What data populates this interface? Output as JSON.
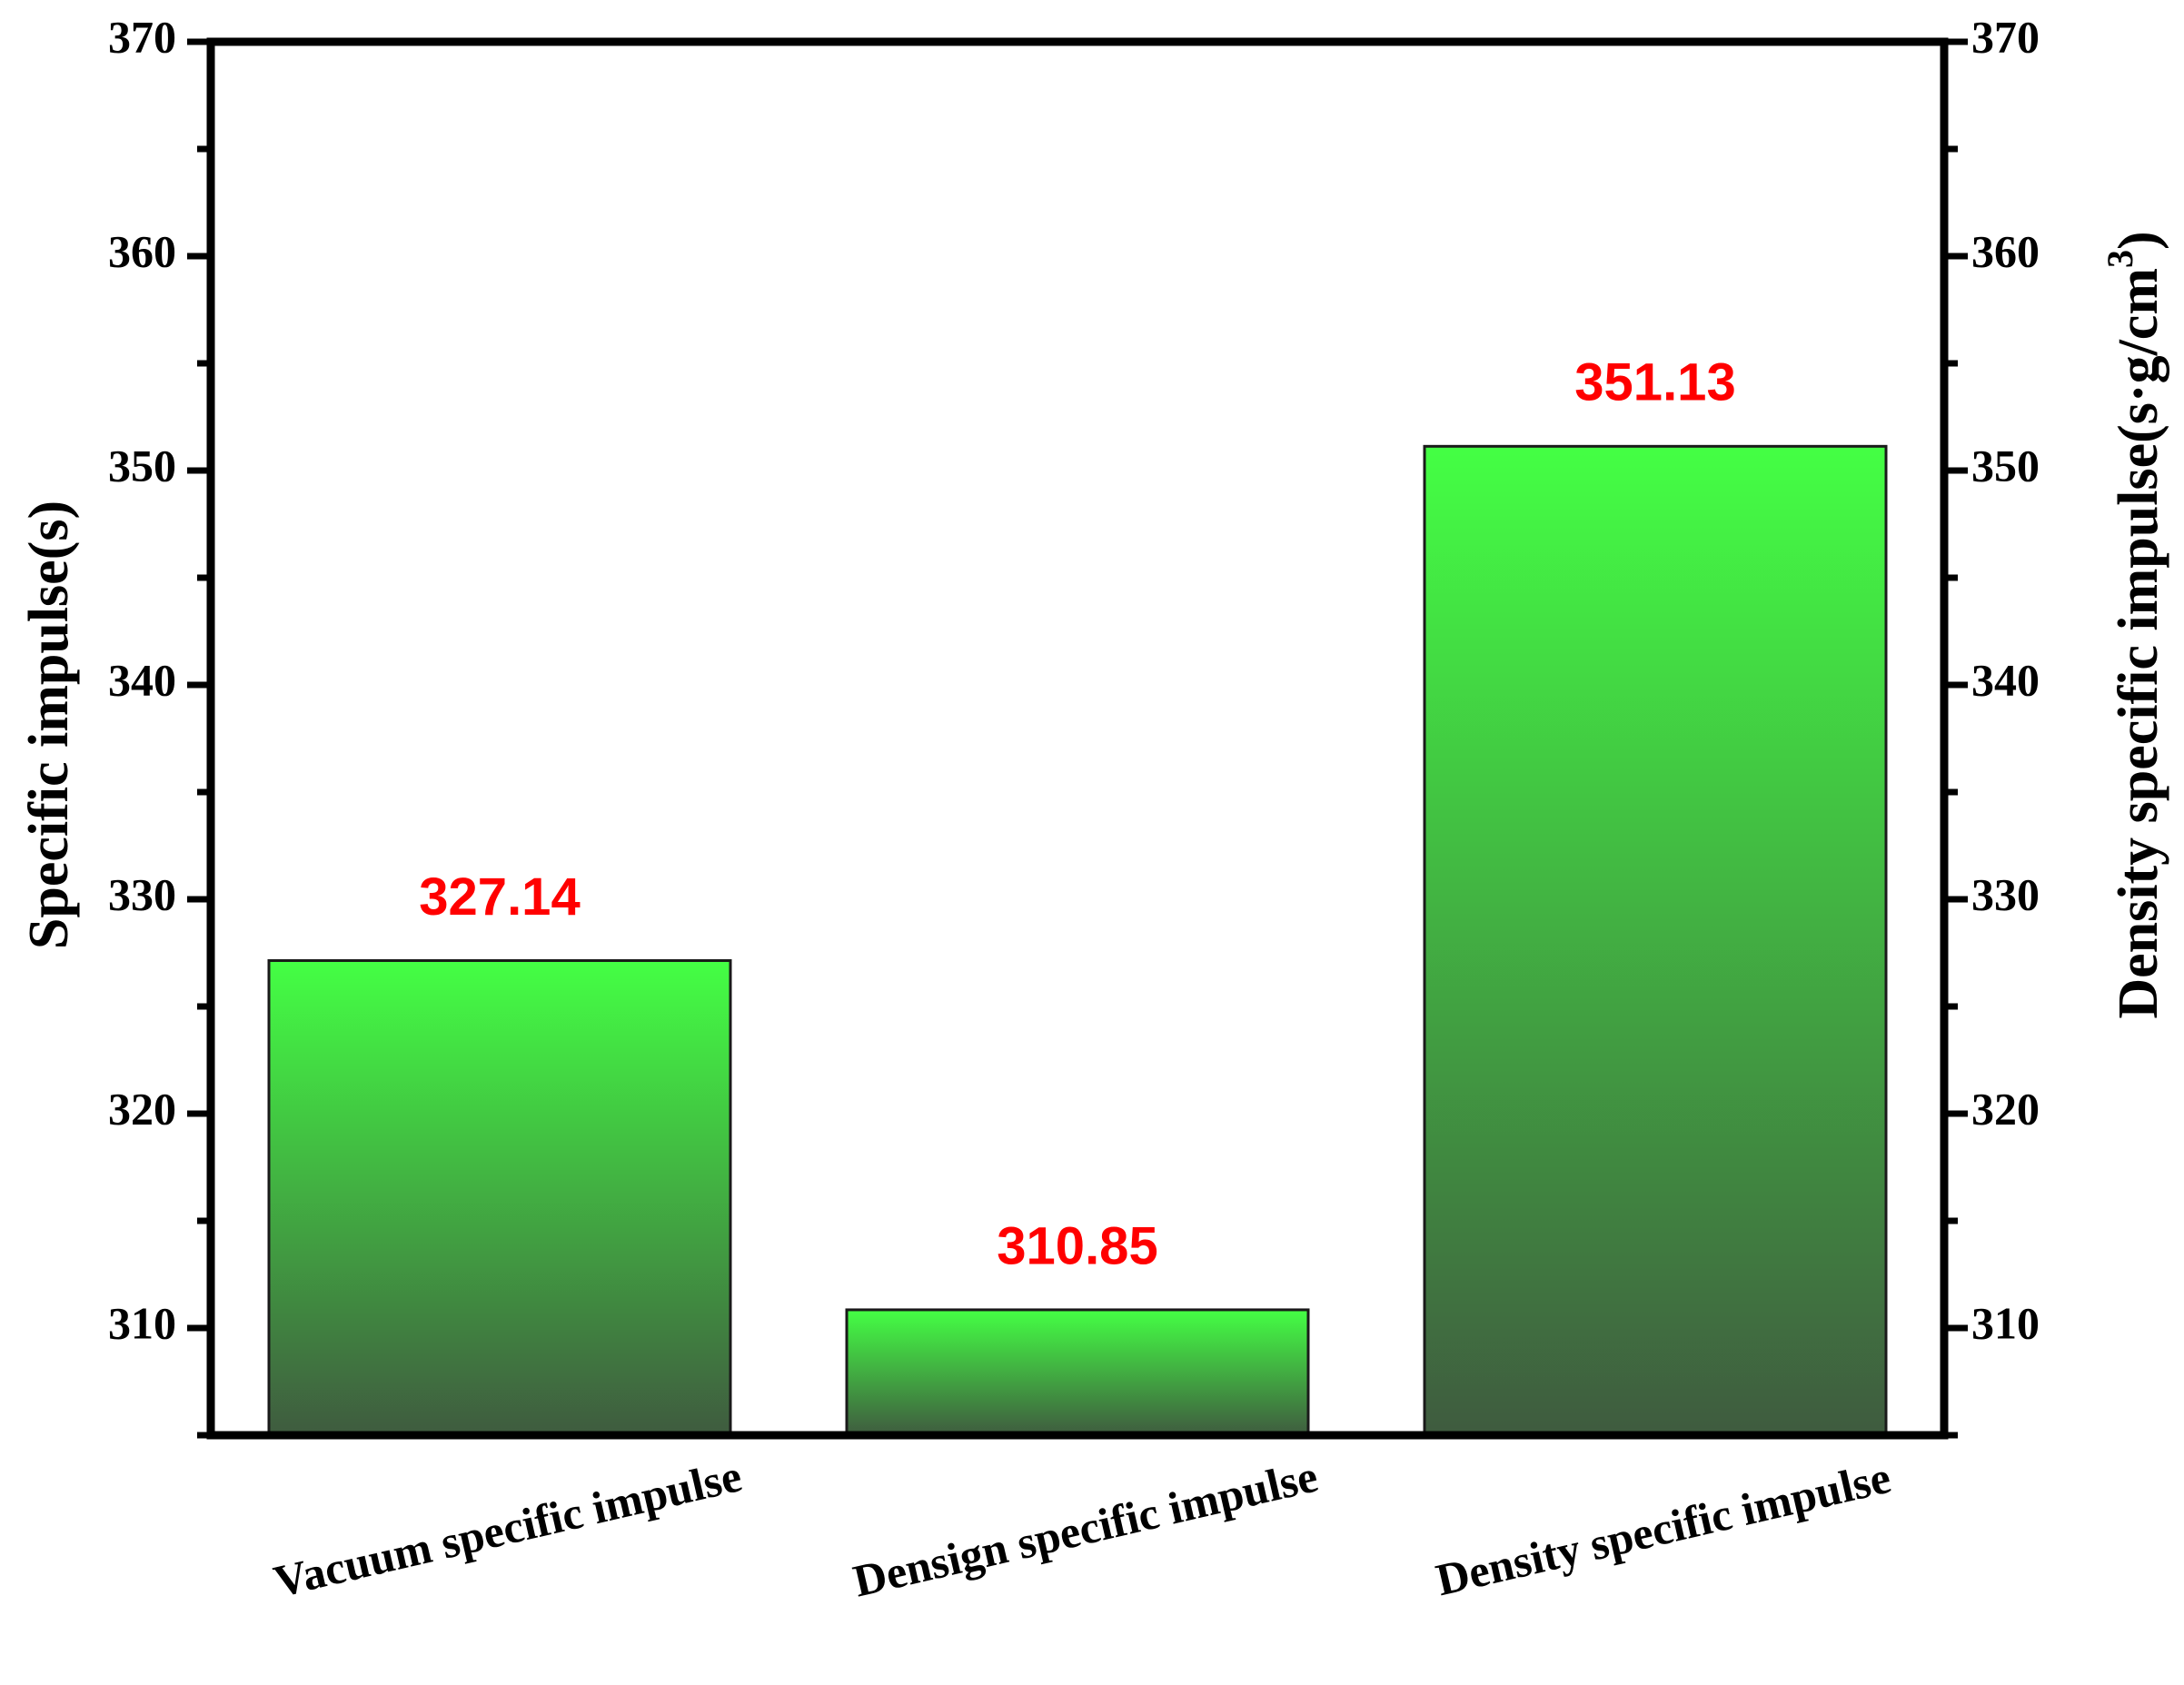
{
  "chart_data": {
    "type": "bar",
    "categories": [
      "Vacuum specific impulse",
      "Densign specific impulse",
      "Density specific impulse"
    ],
    "values": [
      327.14,
      310.85,
      351.13
    ],
    "data_labels": [
      "327.14",
      "310.85",
      "351.13"
    ],
    "ylabel_left": "Specific impulse(s)",
    "ylabel_right": "Density specific impulse(s·g/cm",
    "ylabel_right_superscript": "3",
    "ylabel_right_close": ")",
    "ylim": [
      305,
      370
    ],
    "yticks": [
      310,
      320,
      330,
      340,
      350,
      360,
      370
    ],
    "ytick_labels": [
      "310",
      "320",
      "330",
      "340",
      "350",
      "360",
      "370"
    ],
    "grid": false,
    "colors": {
      "bar_top": "#44FF44",
      "bar_bottom": "#3F5B3F",
      "bar_stroke": "#1a1a1a",
      "value_label": "#FF0000",
      "axis": "#000000"
    }
  }
}
